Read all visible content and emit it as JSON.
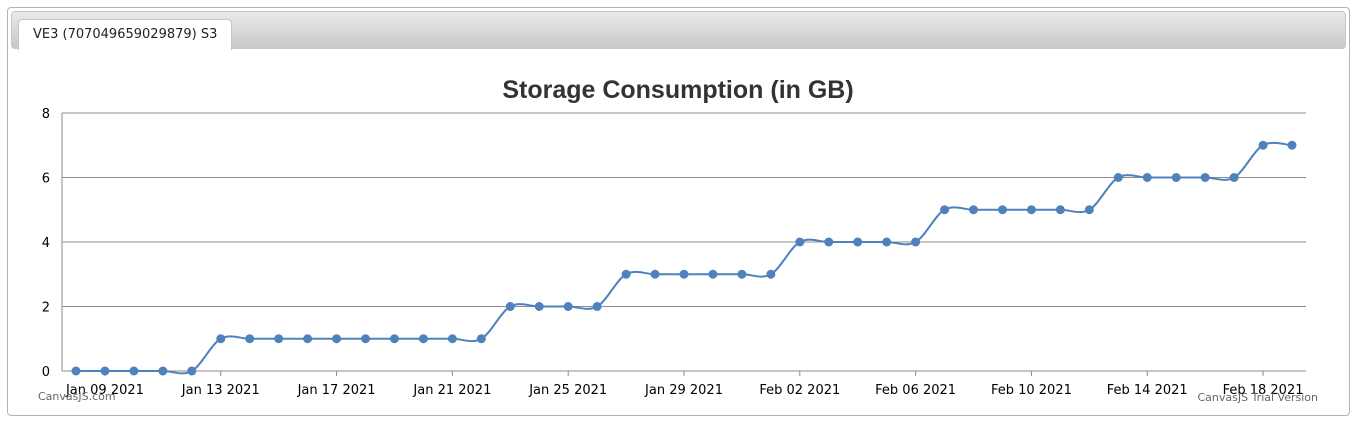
{
  "tabs": [
    {
      "label": "VE3 (707049659029879) S3"
    }
  ],
  "chart_data": {
    "type": "line",
    "title": "Storage Consumption (in GB)",
    "xlabel": "",
    "ylabel": "",
    "ylim": [
      0,
      8
    ],
    "y_ticks": [
      "0",
      "2",
      "4",
      "6",
      "8"
    ],
    "x_ticks": [
      "Jan 09 2021",
      "Jan 13 2021",
      "Jan 17 2021",
      "Jan 21 2021",
      "Jan 25 2021",
      "Jan 29 2021",
      "Feb 02 2021",
      "Feb 06 2021",
      "Feb 10 2021",
      "Feb 14 2021",
      "Feb 18 2021"
    ],
    "grid": true,
    "line_color": "#4f81bc",
    "series": [
      {
        "x": [
          "2021-01-08",
          "2021-01-09",
          "2021-01-10",
          "2021-01-11",
          "2021-01-12",
          "2021-01-13",
          "2021-01-14",
          "2021-01-15",
          "2021-01-16",
          "2021-01-17",
          "2021-01-18",
          "2021-01-19",
          "2021-01-20",
          "2021-01-21",
          "2021-01-22",
          "2021-01-23",
          "2021-01-24",
          "2021-01-25",
          "2021-01-26",
          "2021-01-27",
          "2021-01-28",
          "2021-01-29",
          "2021-01-30",
          "2021-01-31",
          "2021-02-01",
          "2021-02-02",
          "2021-02-03",
          "2021-02-04",
          "2021-02-05",
          "2021-02-06",
          "2021-02-07",
          "2021-02-08",
          "2021-02-09",
          "2021-02-10",
          "2021-02-11",
          "2021-02-12",
          "2021-02-13",
          "2021-02-14",
          "2021-02-15",
          "2021-02-16",
          "2021-02-17",
          "2021-02-18",
          "2021-02-19"
        ],
        "values": [
          0,
          0,
          0,
          0,
          0,
          1,
          1,
          1,
          1,
          1,
          1,
          1,
          1,
          1,
          1,
          2,
          2,
          2,
          2,
          3,
          3,
          3,
          3,
          3,
          3,
          4,
          4,
          4,
          4,
          4,
          5,
          5,
          5,
          5,
          5,
          5,
          6,
          6,
          6,
          6,
          6,
          7,
          7
        ]
      }
    ],
    "credits": {
      "left": "CanvasJS.com",
      "right": "CanvasJS Trial Version"
    }
  }
}
